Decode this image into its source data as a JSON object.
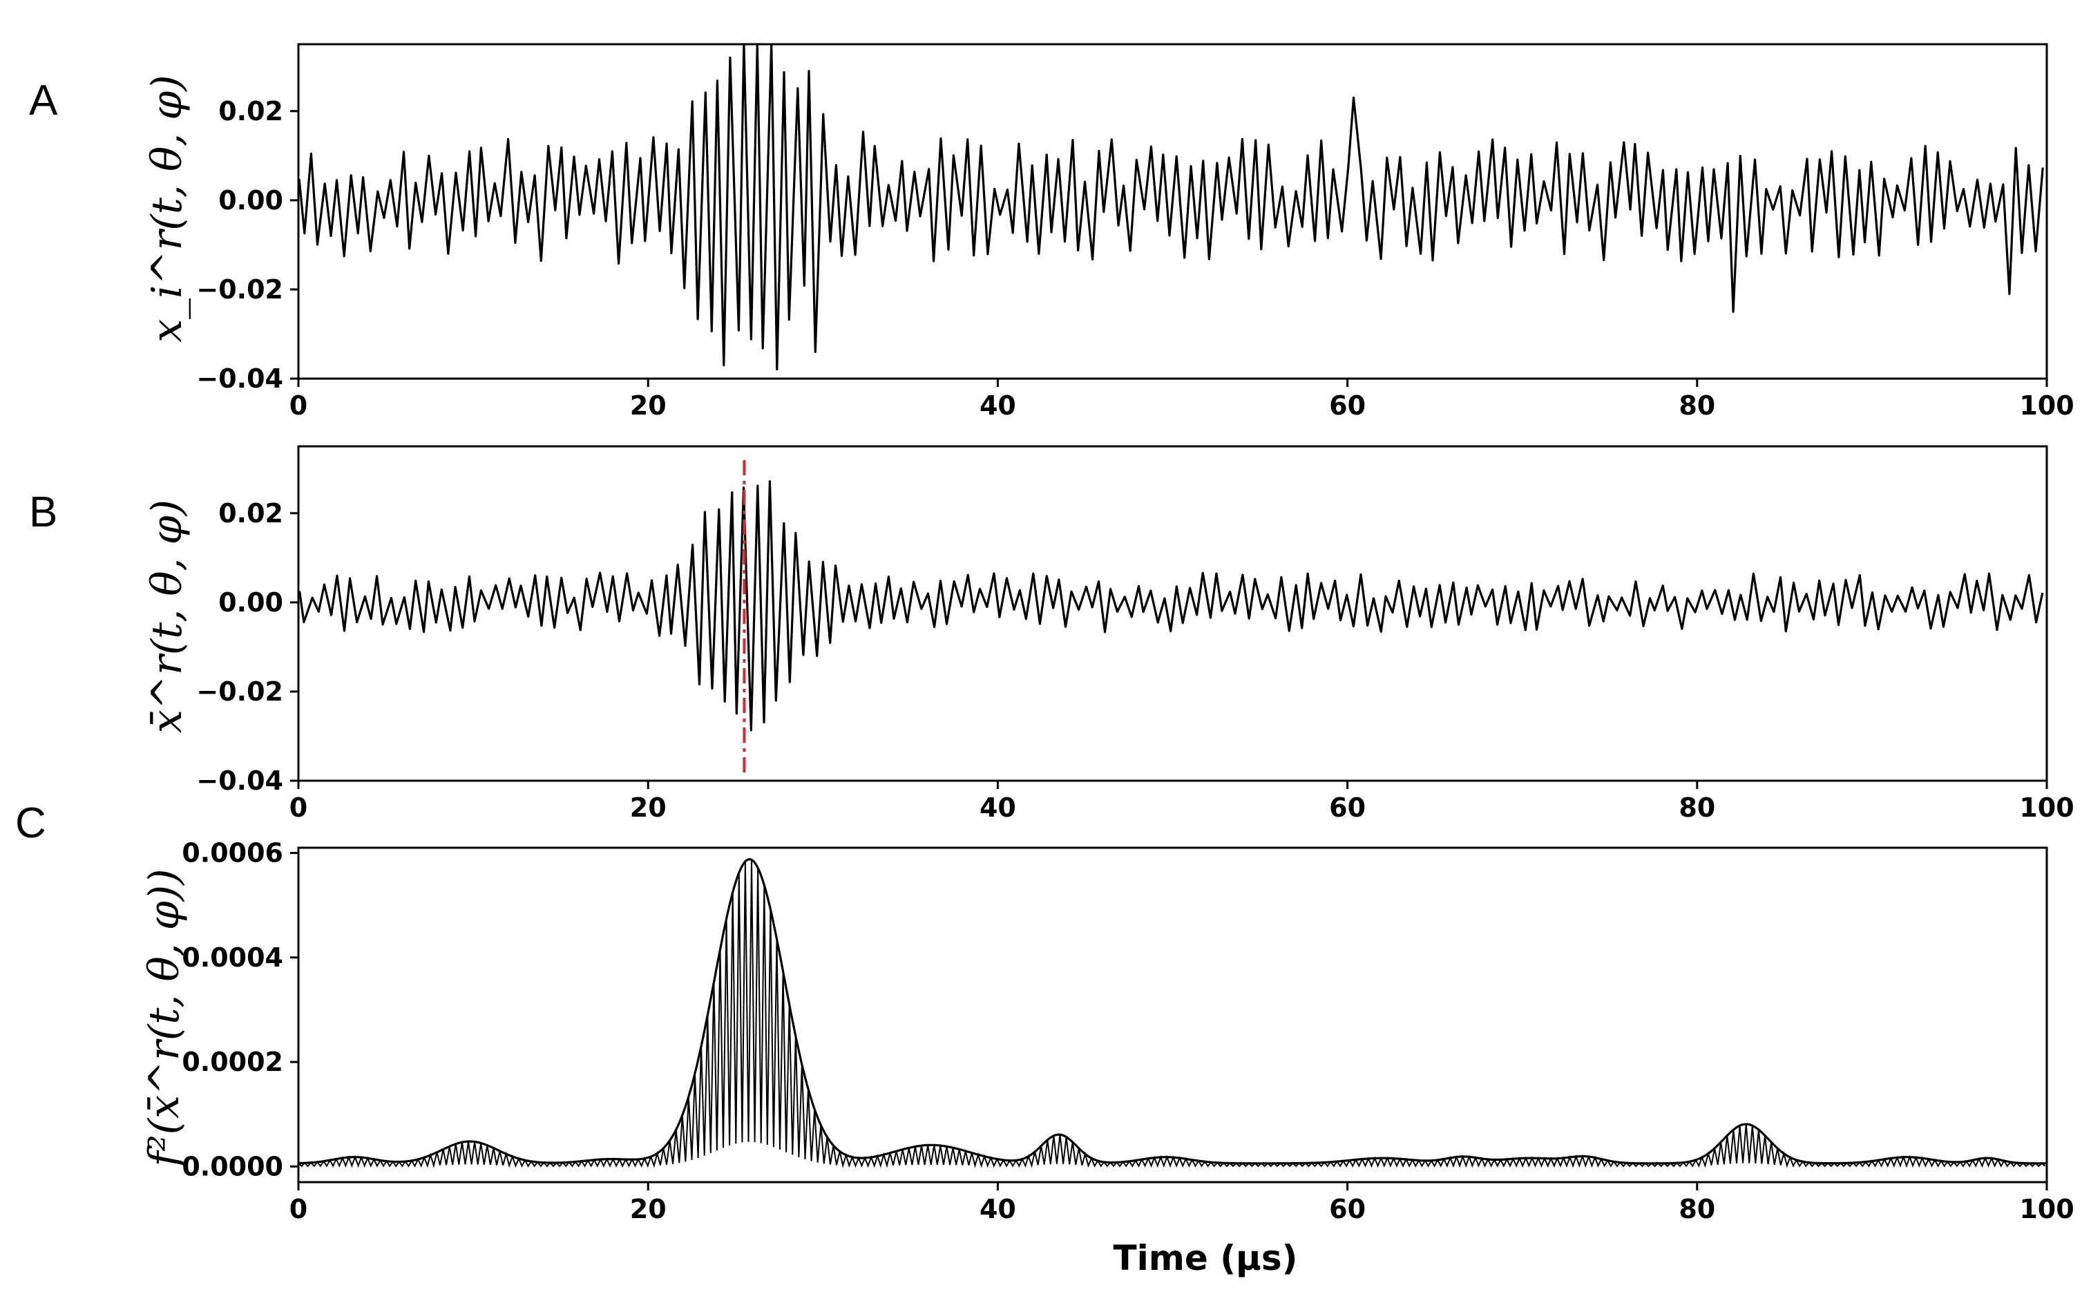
{
  "chart_data": [
    {
      "panel": "A",
      "type": "line",
      "ylabel": "x_i^r(t, θ, φ)",
      "xlabel": "",
      "xlim": [
        0,
        100
      ],
      "ylim": [
        -0.04,
        0.035
      ],
      "xticks": [
        0,
        20,
        40,
        60,
        80,
        100
      ],
      "yticks": [
        0.02,
        0.0,
        -0.02,
        -0.04
      ],
      "xtick_labels": [
        "0",
        "20",
        "40",
        "60",
        "80",
        "100"
      ],
      "ytick_labels": [
        "0.02",
        "0.00",
        "−0.02",
        "−0.04"
      ],
      "signal": {
        "period": 0.75,
        "noise_rms": 0.0075,
        "bursts": [
          {
            "center": 26,
            "width": 2.6,
            "amplitude": 0.028
          }
        ],
        "sample_extremes": [
          [
            24.2,
            -0.037
          ],
          [
            24.6,
            0.032
          ],
          [
            29.2,
            0.029
          ],
          [
            29.5,
            -0.034
          ],
          [
            60.4,
            0.023
          ],
          [
            82.0,
            -0.025
          ],
          [
            98.0,
            -0.021
          ]
        ]
      },
      "grid": false
    },
    {
      "panel": "B",
      "type": "line",
      "ylabel": "x̄^r(t, θ, φ)",
      "xlabel": "",
      "xlim": [
        0,
        100
      ],
      "ylim": [
        -0.04,
        0.035
      ],
      "xticks": [
        0,
        20,
        40,
        60,
        80,
        100
      ],
      "yticks": [
        0.02,
        0.0,
        -0.02,
        -0.04
      ],
      "xtick_labels": [
        "0",
        "20",
        "40",
        "60",
        "80",
        "100"
      ],
      "ytick_labels": [
        "0.02",
        "0.00",
        "−0.02",
        "−0.04"
      ],
      "signal": {
        "period": 0.75,
        "noise_rms": 0.0036,
        "bursts": [
          {
            "center": 25.7,
            "width": 2.4,
            "amplitude": 0.024
          }
        ]
      },
      "marker_x": 25.5,
      "marker_color": "#e0262a",
      "grid": false
    },
    {
      "panel": "C",
      "type": "line",
      "ylabel": "f²(x̄^r(t, θ, φ))",
      "xlabel": "Time (μs)",
      "xlim": [
        0,
        100
      ],
      "ylim": [
        -3e-05,
        0.00061
      ],
      "xticks": [
        0,
        20,
        40,
        60,
        80,
        100
      ],
      "yticks": [
        0.0006,
        0.0004,
        0.0002,
        0.0
      ],
      "xtick_labels": [
        "0",
        "20",
        "40",
        "60",
        "80",
        "100"
      ],
      "ytick_labels": [
        "0.0006",
        "0.0004",
        "0.0002",
        "0.0000"
      ],
      "baseline": 6e-06,
      "envelope_peaks": [
        {
          "center": 3.2,
          "width": 1.2,
          "peak": 1.2e-05
        },
        {
          "center": 9.8,
          "width": 1.6,
          "peak": 4.2e-05
        },
        {
          "center": 17.8,
          "width": 1.4,
          "peak": 8e-06
        },
        {
          "center": 25.8,
          "width": 2.0,
          "peak": 0.000582
        },
        {
          "center": 36.2,
          "width": 2.2,
          "peak": 3.5e-05
        },
        {
          "center": 43.5,
          "width": 1.0,
          "peak": 5.5e-05
        },
        {
          "center": 49.6,
          "width": 1.4,
          "peak": 1.2e-05
        },
        {
          "center": 62.0,
          "width": 1.8,
          "peak": 1e-05
        },
        {
          "center": 66.6,
          "width": 1.0,
          "peak": 1.2e-05
        },
        {
          "center": 70.4,
          "width": 1.6,
          "peak": 1e-05
        },
        {
          "center": 73.6,
          "width": 1.0,
          "peak": 1.2e-05
        },
        {
          "center": 82.8,
          "width": 1.3,
          "peak": 7.5e-05
        },
        {
          "center": 92.0,
          "width": 1.4,
          "peak": 1.2e-05
        },
        {
          "center": 96.6,
          "width": 0.8,
          "peak": 1e-05
        }
      ],
      "grid": false
    }
  ]
}
